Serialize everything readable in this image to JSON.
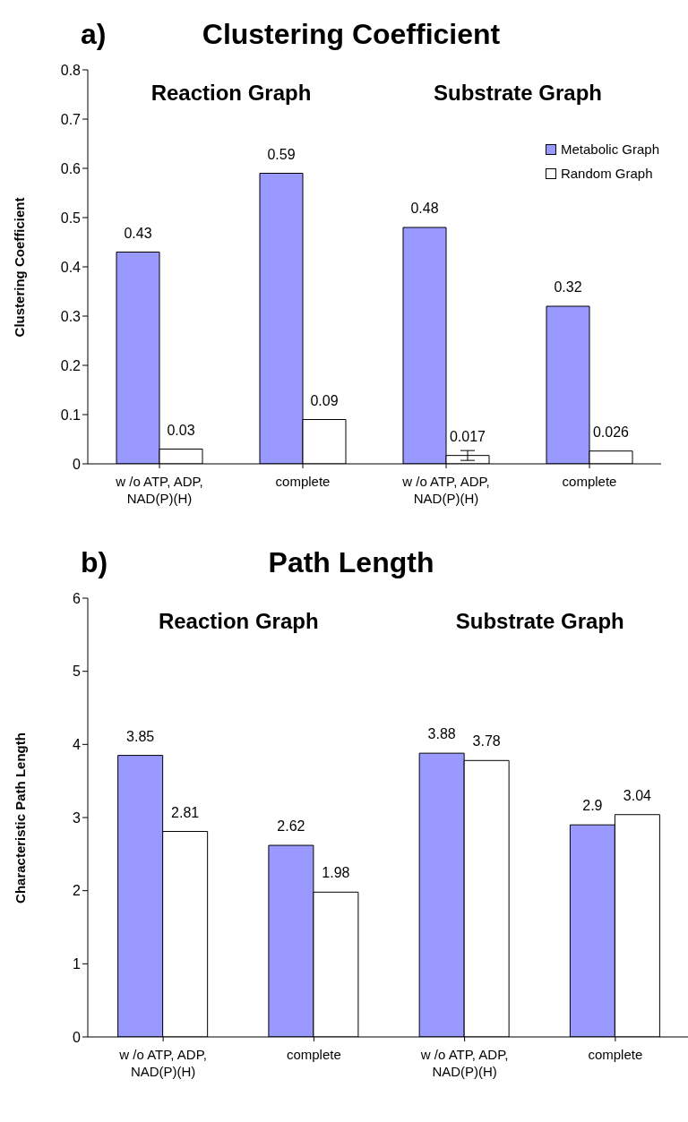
{
  "chart_data": [
    {
      "type": "bar",
      "title": "Clustering Coefficient",
      "ylabel": "Clustering Coefficient",
      "categories": [
        "w /o ATP, ADP, NAD(P)(H)",
        "complete",
        "w /o ATP, ADP, NAD(P)(H)",
        "complete"
      ],
      "series": [
        {
          "name": "Metabolic Graph",
          "color": "#9999ff",
          "values": [
            0.43,
            0.59,
            0.48,
            0.32
          ]
        },
        {
          "name": "Random Graph",
          "color": "#ffffff",
          "values": [
            0.03,
            0.09,
            0.017,
            0.026
          ],
          "errors": [
            null,
            null,
            0.01,
            null
          ]
        }
      ],
      "ylim": [
        0,
        0.8
      ],
      "yticks": [
        0,
        0.1,
        0.2,
        0.3,
        0.4,
        0.5,
        0.6,
        0.7,
        0.8
      ],
      "annotations": [
        "a)",
        "Reaction Graph",
        "Substrate Graph"
      ],
      "data_labels": true,
      "legend": "top right"
    },
    {
      "type": "bar",
      "title": "Path Length",
      "ylabel": "Characteristic Path Length",
      "categories": [
        "w /o ATP, ADP, NAD(P)(H)",
        "complete",
        "w /o ATP, ADP, NAD(P)(H)",
        "complete"
      ],
      "series": [
        {
          "color": "#9999ff",
          "values": [
            3.85,
            2.62,
            3.88,
            2.9
          ]
        },
        {
          "color": "#ffffff",
          "values": [
            2.81,
            1.98,
            3.78,
            3.04
          ]
        }
      ],
      "ylim": [
        0,
        6
      ],
      "yticks": [
        0,
        1,
        2,
        3,
        4,
        5,
        6
      ],
      "annotations": [
        "b)",
        "Reaction Graph",
        "Substrate Graph"
      ],
      "data_labels": true
    }
  ]
}
